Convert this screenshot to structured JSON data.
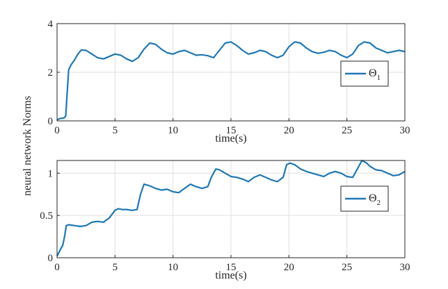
{
  "ylabel": "neural network Norms",
  "chart_data": [
    {
      "type": "line",
      "xlabel": "time(s)",
      "xlim": [
        0,
        30
      ],
      "ylim": [
        0,
        4
      ],
      "xticks": [
        0,
        5,
        10,
        15,
        20,
        25,
        30
      ],
      "yticks": [
        0,
        2,
        4
      ],
      "grid": true,
      "legend_position": "middle-right",
      "series": [
        {
          "name_symbol": "Θ",
          "name_subscript": "1",
          "color": "#1f77b4",
          "x": [
            0,
            0.3,
            0.6,
            0.75,
            0.85,
            1.0,
            1.2,
            1.5,
            1.8,
            2.1,
            2.5,
            3.0,
            3.5,
            4.0,
            4.5,
            5.0,
            5.5,
            6.0,
            6.5,
            7.0,
            7.5,
            8.0,
            8.5,
            9.0,
            9.5,
            10.0,
            10.5,
            11.0,
            11.5,
            12.0,
            12.5,
            13.0,
            13.5,
            14.0,
            14.5,
            15.0,
            15.5,
            16.0,
            16.5,
            17.0,
            17.5,
            18.0,
            18.5,
            19.0,
            19.5,
            20.0,
            20.5,
            21.0,
            21.5,
            22.0,
            22.5,
            23.0,
            23.5,
            24.0,
            24.5,
            25.0,
            25.5,
            26.0,
            26.5,
            27.0,
            27.5,
            28.0,
            28.5,
            29.0,
            29.5,
            30.0
          ],
          "y": [
            0.05,
            0.1,
            0.12,
            0.2,
            1.0,
            2.1,
            2.3,
            2.5,
            2.75,
            2.92,
            2.9,
            2.75,
            2.6,
            2.55,
            2.65,
            2.75,
            2.7,
            2.55,
            2.45,
            2.6,
            2.95,
            3.2,
            3.15,
            2.95,
            2.8,
            2.75,
            2.85,
            2.9,
            2.8,
            2.7,
            2.72,
            2.68,
            2.6,
            2.9,
            3.2,
            3.25,
            3.1,
            2.9,
            2.75,
            2.8,
            2.9,
            2.85,
            2.7,
            2.6,
            2.7,
            3.05,
            3.25,
            3.2,
            3.0,
            2.85,
            2.78,
            2.82,
            2.9,
            2.85,
            2.7,
            2.6,
            2.75,
            3.1,
            3.25,
            3.2,
            3.0,
            2.9,
            2.8,
            2.85,
            2.9,
            2.85
          ]
        }
      ]
    },
    {
      "type": "line",
      "xlabel": "time(s)",
      "xlim": [
        0,
        30
      ],
      "ylim": [
        0,
        1.15
      ],
      "xticks": [
        0,
        5,
        10,
        15,
        20,
        25,
        30
      ],
      "yticks": [
        0,
        0.5,
        1
      ],
      "grid": true,
      "legend_position": "middle-right",
      "series": [
        {
          "name_symbol": "Θ",
          "name_subscript": "2",
          "color": "#1f77b4",
          "x": [
            0,
            0.3,
            0.5,
            0.65,
            0.8,
            1.0,
            1.5,
            2.0,
            2.5,
            3.0,
            3.5,
            4.0,
            4.5,
            5.0,
            5.3,
            5.6,
            6.0,
            6.5,
            6.9,
            7.2,
            7.5,
            8.0,
            8.5,
            9.0,
            9.5,
            10.0,
            10.5,
            11.0,
            11.5,
            12.0,
            12.5,
            13.0,
            13.3,
            13.7,
            14.0,
            14.5,
            15.0,
            15.5,
            16.0,
            16.5,
            17.0,
            17.5,
            18.0,
            18.5,
            19.0,
            19.5,
            19.8,
            20.1,
            20.5,
            21.0,
            21.5,
            22.0,
            22.5,
            23.0,
            23.5,
            24.0,
            24.5,
            25.0,
            25.5,
            25.9,
            26.3,
            26.7,
            27.0,
            27.5,
            28.0,
            28.5,
            29.0,
            29.5,
            30.0
          ],
          "y": [
            0.02,
            0.1,
            0.15,
            0.25,
            0.38,
            0.39,
            0.38,
            0.37,
            0.38,
            0.42,
            0.43,
            0.42,
            0.47,
            0.56,
            0.58,
            0.57,
            0.57,
            0.56,
            0.57,
            0.75,
            0.87,
            0.85,
            0.82,
            0.8,
            0.81,
            0.78,
            0.77,
            0.82,
            0.87,
            0.84,
            0.82,
            0.84,
            0.95,
            1.05,
            1.04,
            1.0,
            0.96,
            0.95,
            0.93,
            0.9,
            0.95,
            0.98,
            0.95,
            0.92,
            0.9,
            0.95,
            1.1,
            1.12,
            1.1,
            1.05,
            1.02,
            1.0,
            0.98,
            0.96,
            1.0,
            1.02,
            1.0,
            0.96,
            0.95,
            1.05,
            1.15,
            1.12,
            1.08,
            1.04,
            1.03,
            1.0,
            0.97,
            0.98,
            1.02
          ]
        }
      ]
    }
  ]
}
